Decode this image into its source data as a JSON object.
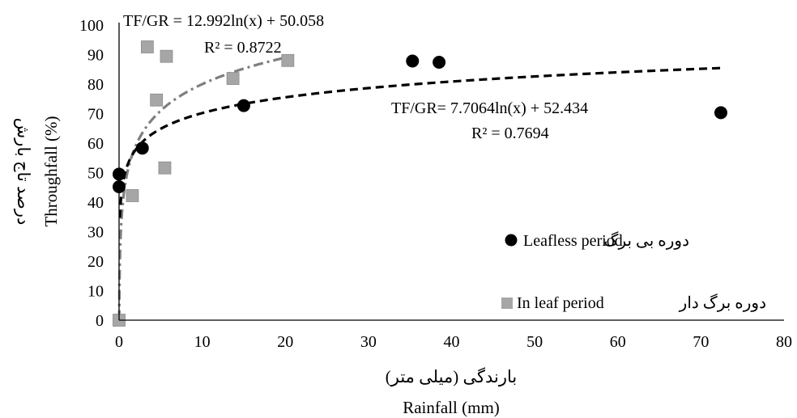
{
  "chart_data": {
    "type": "scatter",
    "xlim": [
      0,
      80
    ],
    "ylim": [
      0,
      100
    ],
    "x_ticks": [
      "0",
      "10",
      "20",
      "30",
      "40",
      "50",
      "60",
      "70",
      "80"
    ],
    "y_ticks": [
      "0",
      "10",
      "20",
      "30",
      "40",
      "50",
      "60",
      "70",
      "80",
      "90",
      "100"
    ],
    "xlabel_fa": "بارندگی (میلی متر)",
    "xlabel_en": "Rainfall (mm)",
    "ylabel_fa": "درصد تاج بارش",
    "ylabel_en": "Throughfall (%)",
    "grid": false,
    "legend_position": "right",
    "series": [
      {
        "name_en": "Leafless period",
        "name_fa": "دوره بی برگ",
        "marker": "circle",
        "color": "#000000",
        "trendline": {
          "equation": "TF/GR= 7.7064ln(x) + 52.434",
          "r2": "R² = 0.7694",
          "a": 7.7064,
          "b": 52.434,
          "style": "dashed",
          "color": "#000000",
          "x_range": [
            0.1,
            72.4
          ]
        },
        "points": [
          [
            0,
            49.5
          ],
          [
            0,
            45.2
          ],
          [
            2.8,
            58.3
          ],
          [
            15,
            72.7
          ],
          [
            35.3,
            87.8
          ],
          [
            38.5,
            87.4
          ],
          [
            72.4,
            70.3
          ]
        ]
      },
      {
        "name_en": "In leaf period",
        "name_fa": "دوره برگ دار",
        "marker": "square",
        "color": "#a6a6a6",
        "trendline": {
          "equation": "TF/GR = 12.992ln(x) + 50.058",
          "r2": "R² = 0.8722",
          "a": 12.992,
          "b": 50.058,
          "style": "dash-dot",
          "color": "#7f7f7f",
          "x_range": [
            0.02,
            20.3
          ]
        },
        "points": [
          [
            0,
            0
          ],
          [
            1.6,
            42.2
          ],
          [
            3.4,
            92.6
          ],
          [
            4.5,
            74.6
          ],
          [
            5.5,
            51.6
          ],
          [
            5.7,
            89.4
          ],
          [
            13.7,
            81.9
          ],
          [
            20.3,
            88
          ]
        ]
      }
    ]
  }
}
